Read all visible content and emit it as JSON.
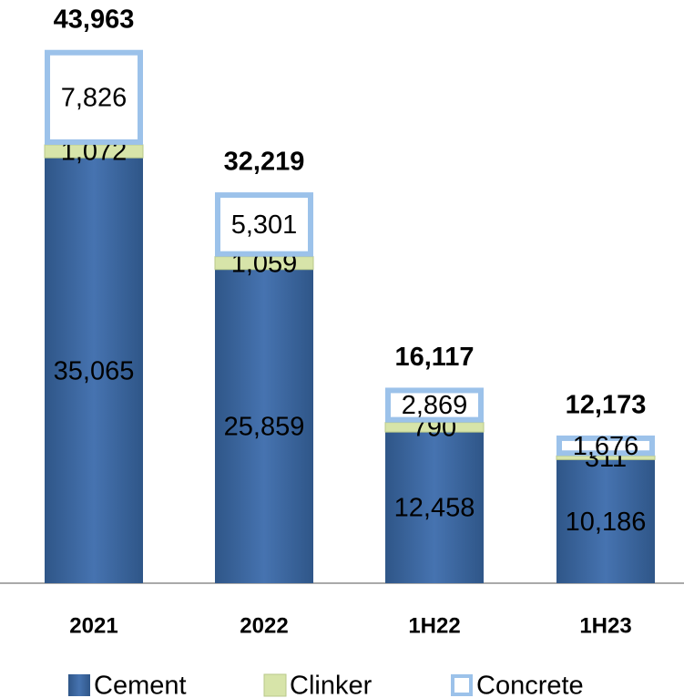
{
  "chart_data": {
    "type": "stacked_bar",
    "categories": [
      "2021",
      "2022",
      "1H22",
      "1H23"
    ],
    "series": [
      {
        "name": "Cement",
        "color": "#3d68a3",
        "values": [
          35065,
          25859,
          12458,
          10186
        ],
        "value_labels": [
          "35,065",
          "25,859",
          "12,458",
          "10,186"
        ]
      },
      {
        "name": "Clinker",
        "color": "#d7e4a9",
        "values": [
          1072,
          1059,
          790,
          311
        ],
        "value_labels": [
          "1,072",
          "1,059",
          "790",
          "311"
        ]
      },
      {
        "name": "Concrete",
        "color": "#9cc2ea",
        "values": [
          7826,
          5301,
          2869,
          1676
        ],
        "value_labels": [
          "7,826",
          "5,301",
          "2,869",
          "1,676"
        ]
      }
    ],
    "totals": [
      43963,
      32219,
      16117,
      12173
    ],
    "totals_labels": [
      "43,963",
      "32,219",
      "16,117",
      "12,173"
    ],
    "ylim": [
      0,
      48000
    ],
    "legend": "bottom"
  }
}
